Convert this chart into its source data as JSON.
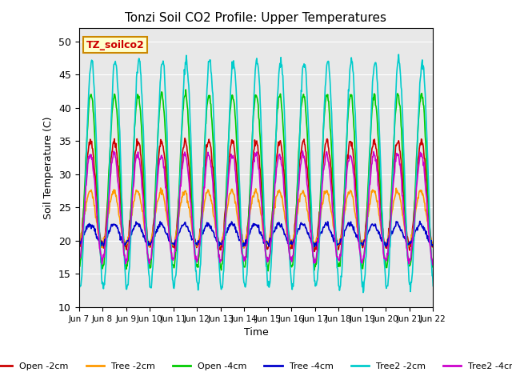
{
  "title": "Tonzi Soil CO2 Profile: Upper Temperatures",
  "xlabel": "Time",
  "ylabel": "Soil Temperature (C)",
  "ylim": [
    10,
    52
  ],
  "yticks": [
    10,
    15,
    20,
    25,
    30,
    35,
    40,
    45,
    50
  ],
  "annotation": "TZ_soilco2",
  "annotation_color": "#cc0000",
  "annotation_bg": "#ffffcc",
  "annotation_border": "#cc8800",
  "xtick_labels": [
    "Jun 7",
    "Jun 8",
    "Jun 9",
    "Jun 10",
    "Jun 11",
    "Jun 12",
    "Jun 13",
    "Jun 14",
    "Jun 15",
    "Jun 16",
    "Jun 17",
    "Jun 18",
    "Jun 19",
    "Jun 20",
    "Jun 21",
    "Jun 22"
  ],
  "series_names": [
    "Open -2cm",
    "Tree -2cm",
    "Open -4cm",
    "Tree -4cm",
    "Tree2 -2cm",
    "Tree2 -4cm"
  ],
  "series_colors": [
    "#cc0000",
    "#ff9900",
    "#00cc00",
    "#0000cc",
    "#00cccc",
    "#cc00cc"
  ],
  "bg_color": "#e8e8e8",
  "fig_bg": "#ffffff",
  "n_days": 15,
  "pts_per_day": 48
}
